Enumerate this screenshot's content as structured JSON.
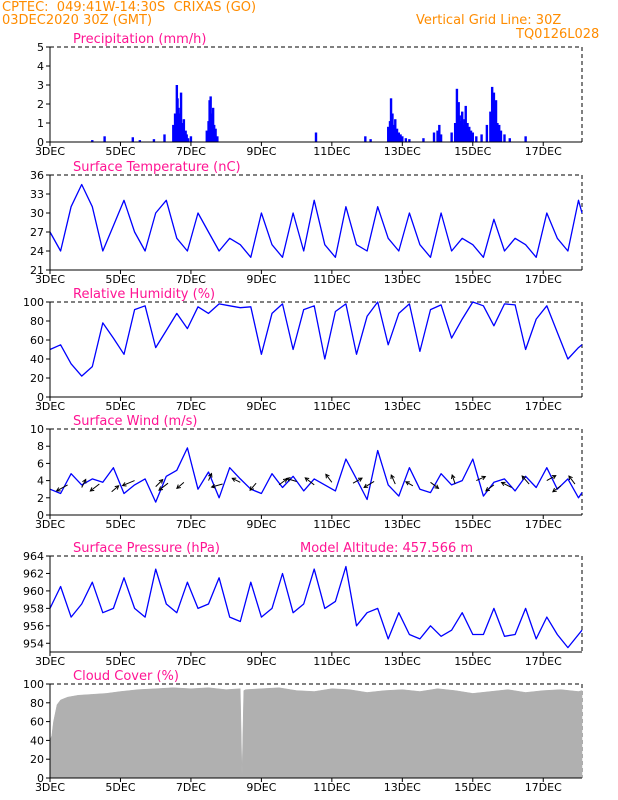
{
  "header": {
    "line1": "CPTEC:  049:41W-14:30S  CRIXAS (GO)",
    "line2": "03DEC2020 30Z (GMT)",
    "grid_note": "Vertical Grid Line: 30Z",
    "code": "TQ0126L028",
    "color": "#ff8c00"
  },
  "colors": {
    "title": "#ff1493",
    "series": "#0000ff",
    "cloud": "#b0b0b0",
    "arrow": "#000000"
  },
  "x_axis": {
    "start_day": 3,
    "end_day": 18.1,
    "ticks": [
      3,
      5,
      7,
      9,
      11,
      13,
      15,
      17
    ],
    "labels": [
      "3DEC",
      "5DEC",
      "7DEC",
      "9DEC",
      "11DEC",
      "13DEC",
      "15DEC",
      "17DEC"
    ]
  },
  "chart_data": [
    {
      "type": "bar",
      "title": "Precipitation (mm/h)",
      "ylim": [
        0,
        5
      ],
      "yticks": [
        0,
        1,
        2,
        3,
        4,
        5
      ],
      "x": [
        4.2,
        4.55,
        5.35,
        5.55,
        5.95,
        6.25,
        6.5,
        6.55,
        6.6,
        6.62,
        6.65,
        6.68,
        6.72,
        6.75,
        6.8,
        6.85,
        6.88,
        6.92,
        7.0,
        7.45,
        7.5,
        7.53,
        7.56,
        7.6,
        7.63,
        7.66,
        7.7,
        7.75,
        10.55,
        11.95,
        12.1,
        12.6,
        12.65,
        12.68,
        12.72,
        12.75,
        12.8,
        12.85,
        12.9,
        12.95,
        13.0,
        13.1,
        13.2,
        13.6,
        13.9,
        14.0,
        14.05,
        14.1,
        14.4,
        14.5,
        14.55,
        14.6,
        14.63,
        14.66,
        14.7,
        14.73,
        14.76,
        14.8,
        14.85,
        14.9,
        14.95,
        15.0,
        15.1,
        15.25,
        15.4,
        15.5,
        15.55,
        15.6,
        15.63,
        15.66,
        15.7,
        15.75,
        15.8,
        15.9,
        16.05,
        16.5
      ],
      "values": [
        0.1,
        0.3,
        0.25,
        0.1,
        0.15,
        0.4,
        0.9,
        1.5,
        3.0,
        2.3,
        1.8,
        1.5,
        2.6,
        1.0,
        1.2,
        0.6,
        0.4,
        0.2,
        0.3,
        0.6,
        1.1,
        2.2,
        2.4,
        1.5,
        1.8,
        0.9,
        0.7,
        0.3,
        0.5,
        0.3,
        0.15,
        0.8,
        1.1,
        2.3,
        1.5,
        0.9,
        1.2,
        0.7,
        0.5,
        0.4,
        0.3,
        0.2,
        0.15,
        0.2,
        0.5,
        0.6,
        0.9,
        0.4,
        0.5,
        1.0,
        2.8,
        2.1,
        1.4,
        1.1,
        1.6,
        0.9,
        1.2,
        1.9,
        1.0,
        0.8,
        0.6,
        0.5,
        0.3,
        0.4,
        0.9,
        1.6,
        2.9,
        2.6,
        1.8,
        2.2,
        1.0,
        0.9,
        0.6,
        0.4,
        0.2,
        0.3
      ]
    },
    {
      "type": "line",
      "title": "Surface Temperature (nC)",
      "ylim": [
        21,
        36
      ],
      "yticks": [
        21,
        24,
        27,
        30,
        33,
        36
      ],
      "series": [
        {
          "x": [
            3,
            3.3,
            3.6,
            3.9,
            4.2,
            4.5,
            4.8,
            5.1,
            5.4,
            5.7,
            6.0,
            6.3,
            6.6,
            6.9,
            7.2,
            7.5,
            7.8,
            8.1,
            8.4,
            8.7,
            9.0,
            9.3,
            9.6,
            9.9,
            10.2,
            10.5,
            10.8,
            11.1,
            11.4,
            11.7,
            12.0,
            12.3,
            12.6,
            12.9,
            13.2,
            13.5,
            13.8,
            14.1,
            14.4,
            14.7,
            15.0,
            15.3,
            15.6,
            15.9,
            16.2,
            16.5,
            16.8,
            17.1,
            17.4,
            17.7,
            18.0,
            18.1
          ],
          "values": [
            27,
            24,
            31,
            34.5,
            31,
            24,
            28,
            32,
            27,
            24,
            30,
            32,
            26,
            24,
            30,
            27,
            24,
            26,
            25,
            23,
            30,
            25,
            23,
            30,
            24,
            32,
            25,
            23,
            31,
            25,
            24,
            31,
            26,
            24,
            30,
            25,
            23,
            30,
            24,
            26,
            25,
            23,
            29,
            24,
            26,
            25,
            23,
            30,
            26,
            24,
            32,
            30
          ]
        }
      ]
    },
    {
      "type": "line",
      "title": "Relative Humidity (%)",
      "ylim": [
        0,
        100
      ],
      "yticks": [
        0,
        20,
        40,
        60,
        80,
        100
      ],
      "series": [
        {
          "x": [
            3,
            3.3,
            3.6,
            3.9,
            4.2,
            4.5,
            4.8,
            5.1,
            5.4,
            5.7,
            6.0,
            6.3,
            6.6,
            6.9,
            7.2,
            7.5,
            7.8,
            8.1,
            8.4,
            8.7,
            9.0,
            9.3,
            9.6,
            9.9,
            10.2,
            10.5,
            10.8,
            11.1,
            11.4,
            11.7,
            12.0,
            12.3,
            12.6,
            12.9,
            13.2,
            13.5,
            13.8,
            14.1,
            14.4,
            14.7,
            15.0,
            15.3,
            15.6,
            15.9,
            16.2,
            16.5,
            16.8,
            17.1,
            17.4,
            17.7,
            18.0,
            18.1
          ],
          "values": [
            50,
            55,
            35,
            22,
            32,
            78,
            62,
            45,
            92,
            96,
            52,
            70,
            88,
            72,
            95,
            88,
            98,
            96,
            94,
            95,
            45,
            88,
            98,
            50,
            92,
            96,
            40,
            90,
            98,
            45,
            85,
            100,
            55,
            88,
            98,
            48,
            92,
            97,
            62,
            82,
            100,
            96,
            75,
            98,
            97,
            50,
            82,
            96,
            68,
            40,
            52,
            55
          ]
        }
      ]
    },
    {
      "type": "line",
      "title": "Surface Wind (m/s)",
      "ylim": [
        0,
        10
      ],
      "yticks": [
        0,
        2,
        4,
        6,
        8,
        10
      ],
      "series": [
        {
          "x": [
            3,
            3.3,
            3.6,
            3.9,
            4.2,
            4.5,
            4.8,
            5.1,
            5.4,
            5.7,
            6.0,
            6.3,
            6.6,
            6.9,
            7.2,
            7.5,
            7.8,
            8.1,
            8.4,
            8.7,
            9.0,
            9.3,
            9.6,
            9.9,
            10.2,
            10.5,
            10.8,
            11.1,
            11.4,
            11.7,
            12.0,
            12.3,
            12.6,
            12.9,
            13.2,
            13.5,
            13.8,
            14.1,
            14.4,
            14.7,
            15.0,
            15.3,
            15.6,
            15.9,
            16.2,
            16.5,
            16.8,
            17.1,
            17.4,
            17.7,
            18.0,
            18.1
          ],
          "values": [
            3,
            2.5,
            4.8,
            3.5,
            4.2,
            3.8,
            5.5,
            2.5,
            3.5,
            4.2,
            1.5,
            4.5,
            5.2,
            7.8,
            3,
            5,
            2,
            5.5,
            4.2,
            3,
            2.5,
            4.8,
            3.2,
            4.5,
            2.8,
            4.2,
            3.5,
            2.8,
            6.5,
            4.2,
            1.8,
            7.5,
            3.5,
            2.2,
            5.5,
            3,
            2.6,
            4.8,
            3.5,
            4,
            6.5,
            2.2,
            3.8,
            4.2,
            2.8,
            4.5,
            3.2,
            5.5,
            3,
            4.2,
            2,
            2.6
          ]
        }
      ],
      "arrows": {
        "x": [
          3.5,
          3.9,
          4.4,
          4.75,
          5.4,
          6.0,
          6.35,
          6.8,
          7.5,
          7.9,
          8.4,
          8.85,
          9.5,
          10.0,
          10.5,
          11.0,
          11.6,
          12.2,
          12.8,
          13.3,
          13.8,
          14.5,
          15.1,
          15.6,
          16.1,
          16.6,
          17.1,
          17.5,
          17.9
        ],
        "y": [
          3.5,
          3.2,
          3.6,
          2.7,
          4.0,
          3.3,
          3.7,
          3.8,
          4.0,
          3.6,
          3.8,
          3.7,
          3.5,
          3.9,
          3.5,
          3.8,
          3.7,
          3.9,
          3.6,
          3.4,
          3.8,
          3.6,
          4.0,
          3.5,
          3.2,
          3.6,
          4.0,
          3.4,
          3.6
        ],
        "dx": [
          -11,
          4,
          -9,
          7,
          -12,
          7,
          -9,
          -7,
          3,
          -11,
          -8,
          -6,
          8,
          -10,
          -9,
          -6,
          9,
          -10,
          -4,
          -7,
          8,
          -3,
          9,
          -8,
          -10,
          -7,
          9,
          -8,
          -6
        ],
        "dy": [
          6,
          -8,
          7,
          -6,
          5,
          -7,
          7,
          6,
          -7,
          3,
          -4,
          7,
          -6,
          -3,
          -7,
          -8,
          -5,
          6,
          -9,
          -4,
          6,
          -9,
          -4,
          6,
          -5,
          -8,
          -5,
          6,
          -8
        ]
      }
    },
    {
      "type": "line",
      "title": "Surface Pressure (hPa)",
      "annotation": "Model Altitude: 457.566 m",
      "ylim": [
        953,
        964
      ],
      "yticks": [
        954,
        956,
        958,
        960,
        962,
        964
      ],
      "series": [
        {
          "x": [
            3,
            3.3,
            3.6,
            3.9,
            4.2,
            4.5,
            4.8,
            5.1,
            5.4,
            5.7,
            6.0,
            6.3,
            6.6,
            6.9,
            7.2,
            7.5,
            7.8,
            8.1,
            8.4,
            8.7,
            9.0,
            9.3,
            9.6,
            9.9,
            10.2,
            10.5,
            10.8,
            11.1,
            11.4,
            11.7,
            12.0,
            12.3,
            12.6,
            12.9,
            13.2,
            13.5,
            13.8,
            14.1,
            14.4,
            14.7,
            15.0,
            15.3,
            15.6,
            15.9,
            16.2,
            16.5,
            16.8,
            17.1,
            17.4,
            17.7,
            18.0,
            18.1
          ],
          "values": [
            958,
            960.5,
            957,
            958.5,
            961,
            957.5,
            958,
            961.5,
            958,
            957,
            962.5,
            958.5,
            957.5,
            961,
            958,
            958.5,
            961.5,
            957,
            956.5,
            961,
            957,
            958,
            962,
            957.5,
            958.5,
            962.5,
            958,
            958.8,
            962.8,
            956,
            957.5,
            958,
            954.5,
            957.5,
            955,
            954.5,
            956,
            954.8,
            955.5,
            957.5,
            955,
            955,
            958,
            954.8,
            955,
            958,
            954.5,
            957,
            955,
            953.5,
            955,
            955.5
          ]
        }
      ]
    },
    {
      "type": "area",
      "title": "Cloud Cover (%)",
      "ylim": [
        0,
        100
      ],
      "yticks": [
        0,
        20,
        40,
        60,
        80,
        100
      ],
      "series": [
        {
          "x": [
            3,
            3.05,
            3.1,
            3.2,
            3.3,
            3.5,
            3.8,
            4.2,
            4.6,
            5.0,
            5.5,
            6.0,
            6.5,
            7.0,
            7.5,
            8.0,
            8.4,
            8.45,
            8.5,
            8.55,
            9.0,
            9.5,
            10.0,
            10.5,
            11.0,
            11.5,
            12.0,
            12.5,
            13.0,
            13.5,
            14.0,
            14.5,
            15.0,
            15.5,
            16.0,
            16.5,
            17.0,
            17.5,
            18.0,
            18.1
          ],
          "values": [
            40,
            45,
            60,
            78,
            83,
            86,
            88,
            89,
            90,
            92,
            94,
            95,
            96,
            95,
            96,
            94,
            95,
            2,
            93,
            94,
            95,
            96,
            93,
            92,
            95,
            94,
            91,
            93,
            94,
            92,
            95,
            93,
            90,
            92,
            94,
            91,
            93,
            94,
            92,
            93
          ]
        }
      ]
    }
  ]
}
